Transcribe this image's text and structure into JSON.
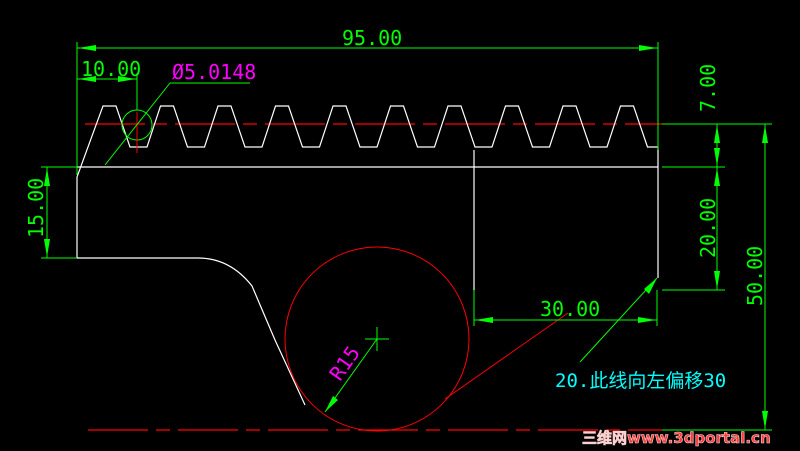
{
  "drawing": {
    "dimensions": {
      "overall_width": "95.00",
      "tooth_offset": "10.00",
      "pitch_circle_diameter": "Ø5.0148",
      "left_height": "15.00",
      "tooth_height": "7.00",
      "right_height": "20.00",
      "total_height": "50.00",
      "offset_width": "30.00",
      "arc_radius": "R15"
    },
    "annotation": "20.此线向左偏移30",
    "watermark": "三维网www.3dportal.cn",
    "colors": {
      "background": "#000000",
      "geometry": "#ffffff",
      "dimensions": "#00ff00",
      "centerlines": "#ff0000",
      "callouts": "#ff00ff",
      "annotation": "#00ffff"
    },
    "tooth_count": 10
  }
}
